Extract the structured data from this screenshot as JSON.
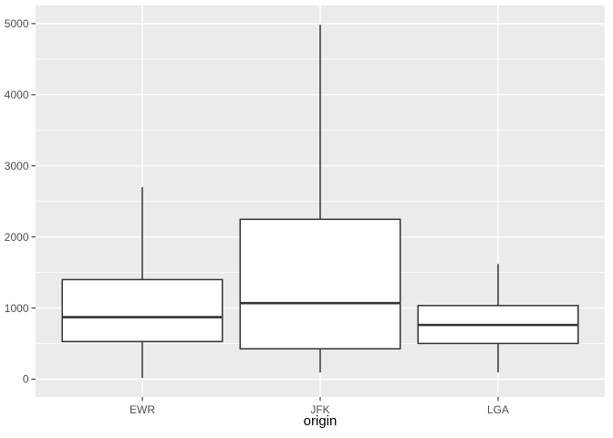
{
  "figure": {
    "background": "#FFFFFF",
    "panel_background": "#EBEBEB",
    "grid_color": "#FFFFFF",
    "box_fill": "#FFFFFF",
    "box_stroke": "#333333",
    "tick_color": "#333333",
    "axis_text_color": "#4D4D4D",
    "axis_title_color": "#000000"
  },
  "chart_data": {
    "type": "boxplot",
    "style": "ggplot2",
    "title": "",
    "xlabel": "origin",
    "ylabel": "",
    "categories": [
      "EWR",
      "JFK",
      "LGA"
    ],
    "series": [
      {
        "name": "EWR",
        "whisker_low": 17,
        "q1": 529,
        "median": 872,
        "q3": 1400,
        "whisker_high": 2700
      },
      {
        "name": "JFK",
        "whisker_low": 94,
        "q1": 427,
        "median": 1069,
        "q3": 2248,
        "whisker_high": 4983
      },
      {
        "name": "LGA",
        "whisker_low": 96,
        "q1": 502,
        "median": 762,
        "q3": 1035,
        "whisker_high": 1620
      }
    ],
    "y_ticks": [
      0,
      1000,
      2000,
      3000,
      4000,
      5000
    ],
    "y_tick_labels": [
      "0",
      "1000",
      "2000",
      "3000",
      "4000",
      "5000"
    ],
    "y_minor_ticks": [
      500,
      1500,
      2500,
      3500,
      4500
    ],
    "ylim": [
      -250,
      5255
    ],
    "grid": true,
    "legend": false
  }
}
